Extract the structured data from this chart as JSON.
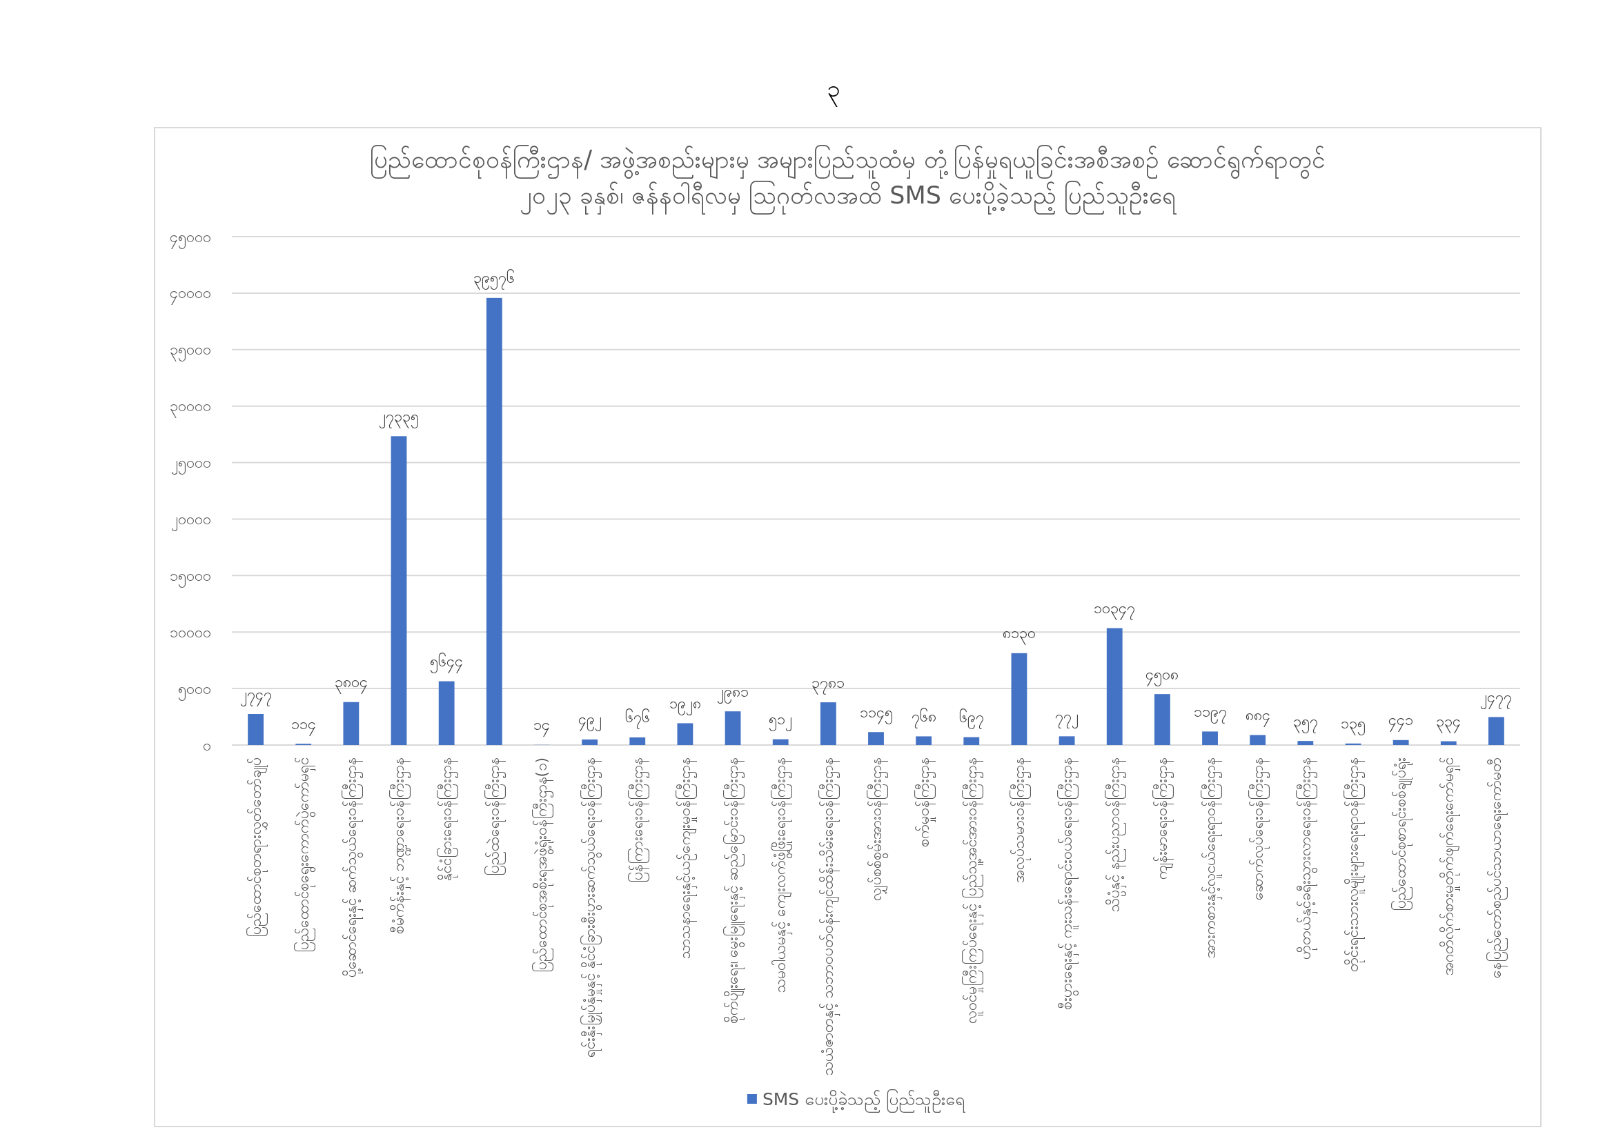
{
  "chart_data": {
    "type": "bar",
    "title": "ပြည်ထောင်စုဝန်ကြီးဌာန/ အဖွဲ့အစည်းများမှ အများပြည်သူထံမှ တုံ့ပြန်မှုရယူခြင်းအစီအစဉ် ဆောင်ရွက်ရာတွင်",
    "subtitle": "၂၀၂၃ ခုနှစ်၊ ဇန်နဝါရီလမှ ဩဂုတ်လအထိ SMS ပေးပို့ခဲ့သည့် ပြည်သူဦးရေ",
    "annotations": [
      "၃"
    ],
    "categories": [
      "ပြည်ထောင်စုတရားလွှတ်တော်ချုပ်",
      "ပြည်ထောင်စုရွေးကောက်ပွဲကော်မရှင်",
      "ပို့ဆောင်ရေးနှင့် ဆက်သွယ်ရေးဝန်ကြီးဌာန",
      "စီမံကိန်းနှင့် ဘဏ္ဍာရေးဝန်ကြီးဌာန",
      "နိုင်ငံခြားရေးဝန်ကြီးဌာန",
      "ပြည်ထဲရေးဝန်ကြီးဌာန",
      "ပြည်ထောင်စုအစိုးရအဖွဲ့ရုံးဝန်ကြီးဌာန(၁)",
      "ရင်းနှီးမြှုပ်နှံမှုနှင့် နိုင်ငံခြားစီးပွားဆက်သွယ်ရေးဝန်ကြီးဌာန",
      "ပြန်ကြားရေးဝန်ကြီးဌာန",
      "သာသနာရေးနှင့်ယဉ်ကျေးမှုဝန်ကြီးဌာန",
      "စိုက်ပျိုးရေး၊ မွေးမြူရေးနှင့် ဆည်မြောင်းဝန်ကြီးဌာန",
      "သမဝါယမနှင့် ကျေးလက်ဖွံ့ဖြိုးရေးဝန်ကြီးဌာန",
      "သယံဇာတနှင့် သဘာဝပတ်ဝန်းကျင်ထိန်းသိမ်းရေးဝန်ကြီးဌာန",
      "လျှပ်စစ်စွမ်းအားဝန်ကြီးဌာန",
      "စက်မှုဝန်ကြီးဌာန",
      "လူဝင်မှုကြီးကြပ်ရေးနှင့် ပြည်သူ့အင်အားဝန်ကြီးဌာန",
      "အလုပ်သမားဝန်ကြီးဌာန",
      "စီးပွားရေးနှင့် ကူးသန်းရောင်းဝယ်ရေးဝန်ကြီးဌာန",
      "သိပ္ပံနှင့် နည်းပညာဝန်ကြီးဌာန",
      "ကျန်းမာရေးဝန်ကြီးဌာန",
      "အားကစားနှင့်လူငယ်ရေးရာဝန်ကြီးဌာန",
      "ဆောက်လုပ်ရေးဝန်ကြီးဌာန",
      "ဟိုတယ်နှင့်ခရီးသွားလာရေးဝန်ကြီးဌာန",
      "တိုင်းရင်းသားလူမျိုးများရေးရာဝန်ကြီးဌာန",
      "ပြည်ထောင်စုစာရင်းစစ်ချုပ်ရုံး",
      "အဂတိလိုက်စားမှုတိုက်ဖျက်ရေးကော်မရှင်",
      "နေပြည်တော်စည်ပင်သာယာရေးကော်မတီ"
    ],
    "series": [
      {
        "name": "SMS ပေးပို့ခဲ့သည့် ပြည်သူဦးရေ",
        "color": "#4472c4",
        "values": [
          2747,
          114,
          3804,
          27335,
          5644,
          39576,
          14,
          492,
          676,
          1928,
          2981,
          512,
          3781,
          1145,
          768,
          697,
          8130,
          772,
          10347,
          4508,
          1197,
          884,
          357,
          135,
          441,
          334,
          2477
        ],
        "value_labels": [
          "၂၇၄၇",
          "၁၁၄",
          "၃၈၀၄",
          "၂၇၃၃၅",
          "၅၆၄၄",
          "၃၉၅၇၆",
          "၁၄",
          "၄၉၂",
          "၆၇၆",
          "၁၉၂၈",
          "၂၉၈၁",
          "၅၁၂",
          "၃၇၈၁",
          "၁၁၄၅",
          "၇၆၈",
          "၆၉၇",
          "၈၁၃၀",
          "၇၇၂",
          "၁၀၃၄၇",
          "၄၅၀၈",
          "၁၁၉၇",
          "၈၈၄",
          "၃၅၇",
          "၁၃၅",
          "၄၄၁",
          "၃၃၄",
          "၂၄၇၇"
        ]
      }
    ],
    "ylim": [
      0,
      45000
    ],
    "yticks": [
      {
        "value": 0,
        "label": "၀"
      },
      {
        "value": 5000,
        "label": "၅၀၀၀"
      },
      {
        "value": 10000,
        "label": "၁၀၀၀၀"
      },
      {
        "value": 15000,
        "label": "၁၅၀၀၀"
      },
      {
        "value": 20000,
        "label": "၂၀၀၀၀"
      },
      {
        "value": 25000,
        "label": "၂၅၀၀၀"
      },
      {
        "value": 30000,
        "label": "၃၀၀၀၀"
      },
      {
        "value": 35000,
        "label": "၃၅၀၀၀"
      },
      {
        "value": 40000,
        "label": "၄၀၀၀၀"
      },
      {
        "value": 45000,
        "label": "၄၅၀၀၀"
      }
    ],
    "grid": "y",
    "legend": "bottom"
  }
}
